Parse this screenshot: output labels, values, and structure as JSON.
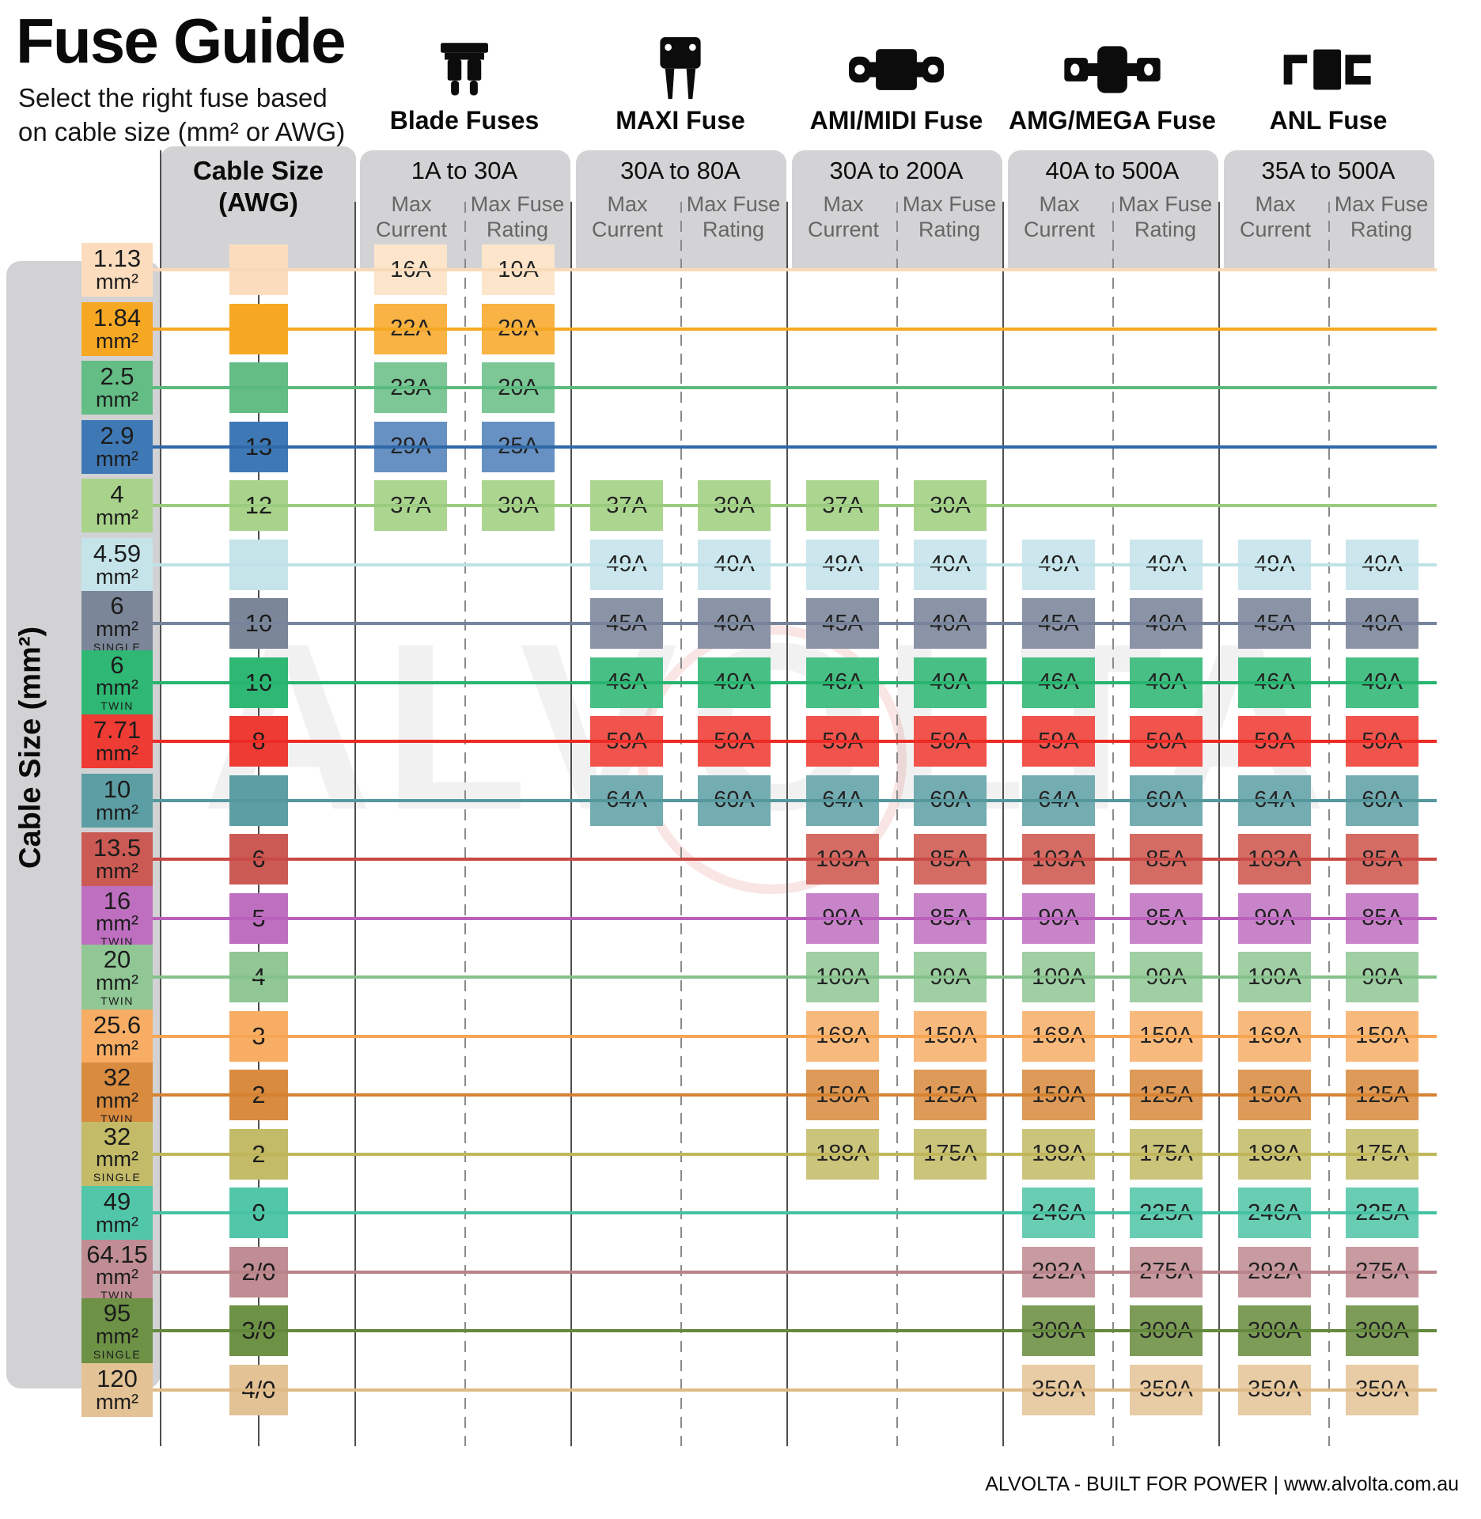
{
  "header": {
    "title": "Fuse Guide",
    "subtitle": "Select the right fuse based\non cable size (mm² or AWG)"
  },
  "labels": {
    "left_axis": "Cable Size (mm²)",
    "awg_header": "Cable Size\n(AWG)",
    "max_current": "Max Current",
    "max_fuse_rating": "Max Fuse Rating",
    "unit": "mm²"
  },
  "colors": {
    "panel_gray": "#d3d3d5",
    "band_gray": "#d2d2d4",
    "divider_solid": "#4f4f4f",
    "divider_dashed": "#8a8a8a",
    "subhead_text": "#666666",
    "watermark_red": "#cd2d23"
  },
  "fuse_types": [
    {
      "name": "Blade Fuses",
      "range": "1A to 30A",
      "icon": "blade-fuse-icon"
    },
    {
      "name": "MAXI Fuse",
      "range": "30A to 80A",
      "icon": "maxi-fuse-icon"
    },
    {
      "name": "AMI/MIDI Fuse",
      "range": "30A to 200A",
      "icon": "ami-midi-fuse-icon"
    },
    {
      "name": "AMG/MEGA Fuse",
      "range": "40A to 500A",
      "icon": "amg-mega-fuse-icon"
    },
    {
      "name": "ANL Fuse",
      "range": "35A to 500A",
      "icon": "anl-fuse-icon"
    }
  ],
  "rows": [
    {
      "size": "1.13",
      "suffix": "",
      "awg": "",
      "chip": "#FBDDBE",
      "cell": "#FCE5CB",
      "line": "#F9D9B8",
      "values": [
        [
          "16A",
          "10A"
        ],
        null,
        null,
        null,
        null
      ]
    },
    {
      "size": "1.84",
      "suffix": "",
      "awg": "",
      "chip": "#F7A823",
      "cell": "#F8B344",
      "line": "#F7A823",
      "values": [
        [
          "22A",
          "20A"
        ],
        null,
        null,
        null,
        null
      ]
    },
    {
      "size": "2.5",
      "suffix": "",
      "awg": "",
      "chip": "#63BD84",
      "cell": "#7CC795",
      "line": "#5BBA7F",
      "values": [
        [
          "23A",
          "20A"
        ],
        null,
        null,
        null,
        null
      ]
    },
    {
      "size": "2.9",
      "suffix": "",
      "awg": "13",
      "chip": "#3F79B5",
      "cell": "#6791C3",
      "line": "#2F68A8",
      "values": [
        [
          "29A",
          "25A"
        ],
        null,
        null,
        null,
        null
      ]
    },
    {
      "size": "4",
      "suffix": "",
      "awg": "12",
      "chip": "#A9D38B",
      "cell": "#ACD590",
      "line": "#9ACB7E",
      "values": [
        [
          "37A",
          "30A"
        ],
        [
          "37A",
          "30A"
        ],
        [
          "37A",
          "30A"
        ],
        null,
        null
      ]
    },
    {
      "size": "4.59",
      "suffix": "",
      "awg": "",
      "chip": "#C4E4EA",
      "cell": "#CBE7ED",
      "line": "#BFE2E8",
      "values": [
        null,
        [
          "49A",
          "40A"
        ],
        [
          "49A",
          "40A"
        ],
        [
          "49A",
          "40A"
        ],
        [
          "49A",
          "40A"
        ]
      ]
    },
    {
      "size": "6",
      "suffix": "SINGLE",
      "awg": "10",
      "chip": "#7B8699",
      "cell": "#8B94A6",
      "line": "#76839B",
      "values": [
        null,
        [
          "45A",
          "40A"
        ],
        [
          "45A",
          "40A"
        ],
        [
          "45A",
          "40A"
        ],
        [
          "45A",
          "40A"
        ]
      ]
    },
    {
      "size": "6",
      "suffix": "TWIN",
      "awg": "10",
      "chip": "#2EB874",
      "cell": "#48BF85",
      "line": "#27B46E",
      "values": [
        null,
        [
          "46A",
          "40A"
        ],
        [
          "46A",
          "40A"
        ],
        [
          "46A",
          "40A"
        ],
        [
          "46A",
          "40A"
        ]
      ]
    },
    {
      "size": "7.71",
      "suffix": "",
      "awg": "8",
      "chip": "#EE3B33",
      "cell": "#F0544C",
      "line": "#ED2B24",
      "values": [
        null,
        [
          "59A",
          "50A"
        ],
        [
          "59A",
          "50A"
        ],
        [
          "59A",
          "50A"
        ],
        [
          "59A",
          "50A"
        ]
      ]
    },
    {
      "size": "10",
      "suffix": "",
      "awg": "",
      "chip": "#5C9EA4",
      "cell": "#73ACB1",
      "line": "#54989E",
      "values": [
        null,
        [
          "64A",
          "60A"
        ],
        [
          "64A",
          "60A"
        ],
        [
          "64A",
          "60A"
        ],
        [
          "64A",
          "60A"
        ]
      ]
    },
    {
      "size": "13.5",
      "suffix": "",
      "awg": "6",
      "chip": "#CC5A54",
      "cell": "#D46C64",
      "line": "#C94A45",
      "values": [
        null,
        null,
        [
          "103A",
          "85A"
        ],
        [
          "103A",
          "85A"
        ],
        [
          "103A",
          "85A"
        ]
      ]
    },
    {
      "size": "16",
      "suffix": "TWIN",
      "awg": "5",
      "chip": "#BF6FC0",
      "cell": "#C884C9",
      "line": "#BA60BC",
      "values": [
        null,
        null,
        [
          "90A",
          "85A"
        ],
        [
          "90A",
          "85A"
        ],
        [
          "90A",
          "85A"
        ]
      ]
    },
    {
      "size": "20",
      "suffix": "TWIN",
      "awg": "4",
      "chip": "#90C795",
      "cell": "#9FCFA3",
      "line": "#84C18A",
      "values": [
        null,
        null,
        [
          "100A",
          "90A"
        ],
        [
          "100A",
          "90A"
        ],
        [
          "100A",
          "90A"
        ]
      ]
    },
    {
      "size": "25.6",
      "suffix": "",
      "awg": "3",
      "chip": "#F7AE64",
      "cell": "#F8BA7C",
      "line": "#F6A554",
      "values": [
        null,
        null,
        [
          "168A",
          "150A"
        ],
        [
          "168A",
          "150A"
        ],
        [
          "168A",
          "150A"
        ]
      ]
    },
    {
      "size": "32",
      "suffix": "TWIN",
      "awg": "2",
      "chip": "#D98B3F",
      "cell": "#DE9A58",
      "line": "#D58231",
      "values": [
        null,
        null,
        [
          "150A",
          "125A"
        ],
        [
          "150A",
          "125A"
        ],
        [
          "150A",
          "125A"
        ]
      ]
    },
    {
      "size": "32",
      "suffix": "SINGLE",
      "awg": "2",
      "chip": "#C3BB67",
      "cell": "#CBC47B",
      "line": "#BFB65A",
      "values": [
        null,
        null,
        [
          "188A",
          "175A"
        ],
        [
          "188A",
          "175A"
        ],
        [
          "188A",
          "175A"
        ]
      ]
    },
    {
      "size": "49",
      "suffix": "",
      "awg": "0",
      "chip": "#52C6A9",
      "cell": "#68CDB3",
      "line": "#46C2A2",
      "values": [
        null,
        null,
        null,
        [
          "246A",
          "225A"
        ],
        [
          "246A",
          "225A"
        ]
      ]
    },
    {
      "size": "64.15",
      "suffix": "TWIN",
      "awg": "2/0",
      "chip": "#BF8D93",
      "cell": "#C89BA0",
      "line": "#B9838A",
      "values": [
        null,
        null,
        null,
        [
          "292A",
          "275A"
        ],
        [
          "292A",
          "275A"
        ]
      ]
    },
    {
      "size": "95",
      "suffix": "SINGLE",
      "awg": "3/0",
      "chip": "#6D9145",
      "cell": "#7D9C58",
      "line": "#64893C",
      "values": [
        null,
        null,
        null,
        [
          "300A",
          "300A"
        ],
        [
          "300A",
          "300A"
        ]
      ]
    },
    {
      "size": "120",
      "suffix": "",
      "awg": "4/0",
      "chip": "#E3C295",
      "cell": "#E8CCA5",
      "line": "#DFBA87",
      "values": [
        null,
        null,
        null,
        [
          "350A",
          "350A"
        ],
        [
          "350A",
          "350A"
        ]
      ]
    }
  ],
  "watermark": {
    "text": "ALVOLTA"
  },
  "footer": {
    "text": "ALVOLTA - BUILT FOR POWER | www.alvolta.com.au"
  },
  "chart_data": {
    "type": "table",
    "title": "Fuse Guide",
    "subtitle": "Select the right fuse based on cable size (mm² or AWG)",
    "column_groups": [
      {
        "name": "Blade Fuses",
        "range": "1A to 30A"
      },
      {
        "name": "MAXI Fuse",
        "range": "30A to 80A"
      },
      {
        "name": "AMI/MIDI Fuse",
        "range": "30A to 200A"
      },
      {
        "name": "AMG/MEGA Fuse",
        "range": "40A to 500A"
      },
      {
        "name": "ANL Fuse",
        "range": "35A to 500A"
      }
    ],
    "columns": [
      "Cable Size (mm²)",
      "Cable Size (AWG)",
      "Blade Max Current",
      "Blade Max Fuse Rating",
      "MAXI Max Current",
      "MAXI Max Fuse Rating",
      "AMI/MIDI Max Current",
      "AMI/MIDI Max Fuse Rating",
      "AMG/MEGA Max Current",
      "AMG/MEGA Max Fuse Rating",
      "ANL Max Current",
      "ANL Max Fuse Rating"
    ],
    "rows": [
      [
        "1.13 mm²",
        "",
        "16A",
        "10A",
        "",
        "",
        "",
        "",
        "",
        "",
        "",
        ""
      ],
      [
        "1.84 mm²",
        "",
        "22A",
        "20A",
        "",
        "",
        "",
        "",
        "",
        "",
        "",
        ""
      ],
      [
        "2.5 mm²",
        "",
        "23A",
        "20A",
        "",
        "",
        "",
        "",
        "",
        "",
        "",
        ""
      ],
      [
        "2.9 mm²",
        "13",
        "29A",
        "25A",
        "",
        "",
        "",
        "",
        "",
        "",
        "",
        ""
      ],
      [
        "4 mm²",
        "12",
        "37A",
        "30A",
        "37A",
        "30A",
        "37A",
        "30A",
        "",
        "",
        "",
        ""
      ],
      [
        "4.59 mm²",
        "",
        "",
        "",
        "49A",
        "40A",
        "49A",
        "40A",
        "49A",
        "40A",
        "49A",
        "40A"
      ],
      [
        "6 mm² SINGLE",
        "10",
        "",
        "",
        "45A",
        "40A",
        "45A",
        "40A",
        "45A",
        "40A",
        "45A",
        "40A"
      ],
      [
        "6 mm² TWIN",
        "10",
        "",
        "",
        "46A",
        "40A",
        "46A",
        "40A",
        "46A",
        "40A",
        "46A",
        "40A"
      ],
      [
        "7.71 mm²",
        "8",
        "",
        "",
        "59A",
        "50A",
        "59A",
        "50A",
        "59A",
        "50A",
        "59A",
        "50A"
      ],
      [
        "10 mm²",
        "",
        "",
        "",
        "64A",
        "60A",
        "64A",
        "60A",
        "64A",
        "60A",
        "64A",
        "60A"
      ],
      [
        "13.5 mm²",
        "6",
        "",
        "",
        "",
        "",
        "103A",
        "85A",
        "103A",
        "85A",
        "103A",
        "85A"
      ],
      [
        "16 mm² TWIN",
        "5",
        "",
        "",
        "",
        "",
        "90A",
        "85A",
        "90A",
        "85A",
        "90A",
        "85A"
      ],
      [
        "20 mm² TWIN",
        "4",
        "",
        "",
        "",
        "",
        "100A",
        "90A",
        "100A",
        "90A",
        "100A",
        "90A"
      ],
      [
        "25.6 mm²",
        "3",
        "",
        "",
        "",
        "",
        "168A",
        "150A",
        "168A",
        "150A",
        "168A",
        "150A"
      ],
      [
        "32 mm² TWIN",
        "2",
        "",
        "",
        "",
        "",
        "150A",
        "125A",
        "150A",
        "125A",
        "150A",
        "125A"
      ],
      [
        "32 mm² SINGLE",
        "2",
        "",
        "",
        "",
        "",
        "188A",
        "175A",
        "188A",
        "175A",
        "188A",
        "175A"
      ],
      [
        "49 mm²",
        "0",
        "",
        "",
        "",
        "",
        "",
        "",
        "246A",
        "225A",
        "246A",
        "225A"
      ],
      [
        "64.15 mm² TWIN",
        "2/0",
        "",
        "",
        "",
        "",
        "",
        "",
        "292A",
        "275A",
        "292A",
        "275A"
      ],
      [
        "95 mm² SINGLE",
        "3/0",
        "",
        "",
        "",
        "",
        "",
        "",
        "300A",
        "300A",
        "300A",
        "300A"
      ],
      [
        "120 mm²",
        "4/0",
        "",
        "",
        "",
        "",
        "",
        "",
        "350A",
        "350A",
        "350A",
        "350A"
      ]
    ]
  }
}
